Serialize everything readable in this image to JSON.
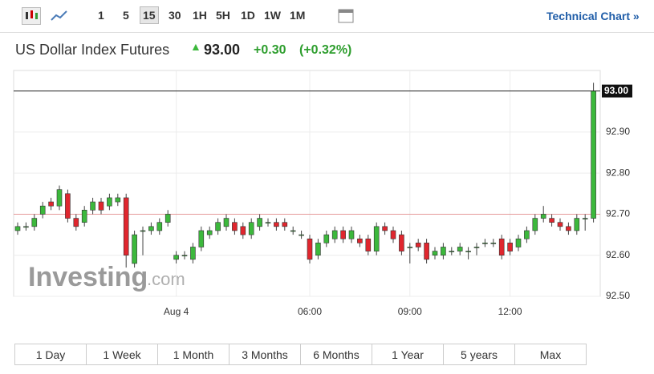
{
  "toolbar": {
    "intervals": [
      "1",
      "5",
      "15",
      "30",
      "1H",
      "5H",
      "1D",
      "1W",
      "1M"
    ],
    "link": "Technical Chart »"
  },
  "header": {
    "title": "US Dollar Index Futures",
    "price": "93.00",
    "change": "+0.30",
    "change_pct": "(+0.32%)"
  },
  "chart_data": {
    "type": "candlestick",
    "categories": [
      null,
      null,
      null,
      null,
      null,
      null,
      null,
      null,
      null,
      null,
      null,
      null,
      null,
      null,
      null,
      null,
      null,
      null,
      null,
      "Aug 4",
      null,
      null,
      null,
      null,
      null,
      null,
      null,
      null,
      null,
      null,
      null,
      null,
      null,
      null,
      null,
      "06:00",
      null,
      null,
      null,
      null,
      null,
      null,
      null,
      null,
      null,
      null,
      null,
      "09:00",
      null,
      null,
      null,
      null,
      null,
      null,
      null,
      null,
      null,
      null,
      null,
      "12:00",
      null,
      null,
      null,
      null,
      null,
      null,
      null,
      null,
      null,
      null
    ],
    "open": [
      92.66,
      92.67,
      92.67,
      92.7,
      92.73,
      92.72,
      92.75,
      92.69,
      92.68,
      92.71,
      92.73,
      92.72,
      92.73,
      92.74,
      92.58,
      92.66,
      92.66,
      92.66,
      92.68,
      92.59,
      92.6,
      92.59,
      92.62,
      92.65,
      92.66,
      92.67,
      92.68,
      92.67,
      92.65,
      92.67,
      92.68,
      92.68,
      92.68,
      92.66,
      92.65,
      92.64,
      92.6,
      92.63,
      92.64,
      92.66,
      92.64,
      92.64,
      92.64,
      92.61,
      92.67,
      92.66,
      92.65,
      92.62,
      92.63,
      92.63,
      92.6,
      92.6,
      92.61,
      92.61,
      92.61,
      92.62,
      92.63,
      92.63,
      92.64,
      92.63,
      92.62,
      92.64,
      92.66,
      92.69,
      92.69,
      92.68,
      92.67,
      92.66,
      92.69,
      92.69
    ],
    "high": [
      92.68,
      92.68,
      92.7,
      92.73,
      92.74,
      92.77,
      92.76,
      92.7,
      92.72,
      92.74,
      92.74,
      92.75,
      92.75,
      92.75,
      92.66,
      92.67,
      92.68,
      92.69,
      92.71,
      92.61,
      92.61,
      92.63,
      92.67,
      92.67,
      92.69,
      92.7,
      92.69,
      92.68,
      92.69,
      92.7,
      92.69,
      92.69,
      92.69,
      92.67,
      92.66,
      92.65,
      92.64,
      92.66,
      92.67,
      92.67,
      92.67,
      92.65,
      92.65,
      92.68,
      92.68,
      92.67,
      92.66,
      92.63,
      92.64,
      92.64,
      92.62,
      92.63,
      92.62,
      92.63,
      92.62,
      92.63,
      92.64,
      92.64,
      92.65,
      92.64,
      92.65,
      92.67,
      92.7,
      92.72,
      92.7,
      92.69,
      92.68,
      92.7,
      92.7,
      93.02
    ],
    "low": [
      92.65,
      92.66,
      92.66,
      92.69,
      92.71,
      92.71,
      92.68,
      92.66,
      92.67,
      92.7,
      92.7,
      92.71,
      92.72,
      92.57,
      92.57,
      92.6,
      92.65,
      92.65,
      92.67,
      92.58,
      92.59,
      92.58,
      92.61,
      92.64,
      92.65,
      92.66,
      92.65,
      92.64,
      92.64,
      92.66,
      92.67,
      92.66,
      92.66,
      92.65,
      92.64,
      92.58,
      92.59,
      92.62,
      92.63,
      92.63,
      92.63,
      92.62,
      92.6,
      92.6,
      92.65,
      92.63,
      92.6,
      92.58,
      92.61,
      92.58,
      92.59,
      92.59,
      92.6,
      92.6,
      92.59,
      92.6,
      92.62,
      92.62,
      92.59,
      92.6,
      92.61,
      92.63,
      92.65,
      92.68,
      92.67,
      92.66,
      92.65,
      92.65,
      92.66,
      92.68
    ],
    "close": [
      92.67,
      92.67,
      92.69,
      92.72,
      92.72,
      92.76,
      92.69,
      92.67,
      92.71,
      92.73,
      92.71,
      92.74,
      92.74,
      92.6,
      92.65,
      92.66,
      92.67,
      92.68,
      92.7,
      92.6,
      92.6,
      92.62,
      92.66,
      92.66,
      92.68,
      92.69,
      92.66,
      92.65,
      92.68,
      92.69,
      92.68,
      92.67,
      92.67,
      92.66,
      92.65,
      92.59,
      92.63,
      92.65,
      92.66,
      92.64,
      92.66,
      92.63,
      92.61,
      92.67,
      92.66,
      92.64,
      92.61,
      92.62,
      92.62,
      92.59,
      92.61,
      92.62,
      92.61,
      92.62,
      92.61,
      92.62,
      92.63,
      92.63,
      92.6,
      92.61,
      92.64,
      92.66,
      92.69,
      92.7,
      92.68,
      92.67,
      92.66,
      92.69,
      92.69,
      93.0
    ],
    "up_color": "#3cb83c",
    "down_color": "#e0262e",
    "ylim": [
      92.5,
      93.05
    ],
    "yticks": [
      {
        "value": 92.5,
        "label": "92.50"
      },
      {
        "value": 92.6,
        "label": "92.60"
      },
      {
        "value": 92.7,
        "label": "92.70"
      },
      {
        "value": 92.8,
        "label": "92.80"
      },
      {
        "value": 92.9,
        "label": "92.90"
      },
      {
        "value": 93.0,
        "label": "93.00"
      }
    ],
    "reference_line": 92.7,
    "reference_color": "#e59a9a",
    "last_price": {
      "value": 93.0,
      "label": "93.00"
    },
    "grid": true
  },
  "watermark": {
    "brand": "Investing",
    "suffix": ".com"
  },
  "ranges": [
    "1 Day",
    "1 Week",
    "1 Month",
    "3 Months",
    "6 Months",
    "1 Year",
    "5 years",
    "Max"
  ]
}
